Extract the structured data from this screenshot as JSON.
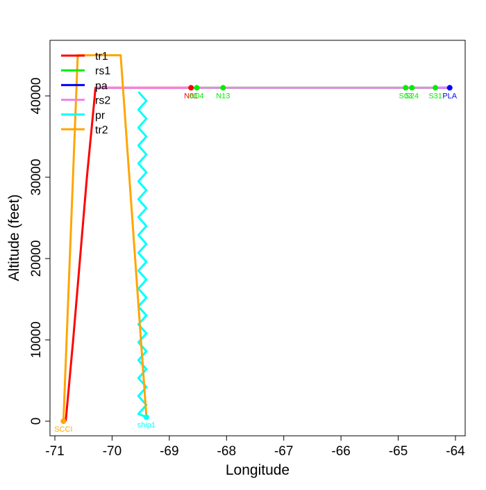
{
  "chart_data": {
    "type": "line",
    "xlabel": "Longitude",
    "ylabel": "Altitude (feet)",
    "xlim": [
      -71.085,
      -63.83
    ],
    "ylim": [
      -1795,
      46838
    ],
    "xticks": [
      -71,
      -70,
      -69,
      -68,
      -67,
      -66,
      -65,
      -64
    ],
    "yticks": [
      0,
      10000,
      20000,
      30000,
      40000
    ],
    "legend": "top-left",
    "series": [
      {
        "name": "tr1",
        "color": "#ff0000",
        "x": [
          -70.81,
          -70.68,
          -70.56,
          -70.44,
          -70.33,
          -70.29,
          -68.62
        ],
        "values": [
          0,
          10000,
          20000,
          30000,
          38000,
          41000,
          41000
        ]
      },
      {
        "name": "rs1",
        "color": "#00ee00",
        "x": [
          -68.56,
          -64.32
        ],
        "values": [
          41000,
          41000
        ]
      },
      {
        "name": "pa",
        "color": "#0000ff",
        "x": [
          -64.32,
          -64.1
        ],
        "values": [
          41000,
          41000
        ]
      },
      {
        "name": "rs2",
        "color": "#ee82ee",
        "x": [
          -70.29,
          -64.1
        ],
        "values": [
          41000,
          41000
        ]
      },
      {
        "name": "pr",
        "color": "#00ffff",
        "x": [
          -69.54,
          -69.4,
          -69.54,
          -69.4,
          -69.54,
          -69.4,
          -69.54,
          -69.4,
          -69.54,
          -69.4,
          -69.54,
          -69.4,
          -69.54,
          -69.4,
          -69.54,
          -69.4,
          -69.54,
          -69.4,
          -69.54,
          -69.4,
          -69.54,
          -69.4,
          -69.54,
          -69.4,
          -69.54,
          -69.4,
          -69.54,
          -69.4,
          -69.54,
          -69.4,
          -69.54,
          -69.4,
          -69.54,
          -69.4,
          -69.54,
          -69.4,
          -69.54,
          -69.4
        ],
        "values": [
          40500,
          39400,
          38300,
          37200,
          36100,
          35000,
          33900,
          32800,
          31700,
          30600,
          29500,
          28400,
          27300,
          26200,
          25100,
          24000,
          22900,
          21800,
          20700,
          19600,
          18500,
          17400,
          16300,
          15200,
          14100,
          13000,
          11900,
          10800,
          9700,
          8600,
          7500,
          6400,
          5300,
          4200,
          3100,
          2000,
          900,
          500
        ]
      },
      {
        "name": "tr2",
        "color": "#ffa500",
        "x": [
          -70.85,
          -70.6,
          -69.85,
          -69.4
        ],
        "values": [
          0,
          45000,
          45000,
          500
        ]
      }
    ],
    "points": [
      {
        "label": "SCCI",
        "color": "#ffa500",
        "x": -70.85,
        "y": 0
      },
      {
        "label": "ship1",
        "color": "#00ffff",
        "x": -69.4,
        "y": 500
      },
      {
        "label": "N01",
        "color": "#ff0000",
        "x": -68.62,
        "y": 41000
      },
      {
        "label": "N04",
        "color": "#00ee00",
        "x": -68.52,
        "y": 41000
      },
      {
        "label": "N13",
        "color": "#00ee00",
        "x": -68.06,
        "y": 41000
      },
      {
        "label": "S03",
        "color": "#00ee00",
        "x": -64.87,
        "y": 41000
      },
      {
        "label": "S24",
        "color": "#00ee00",
        "x": -64.76,
        "y": 41000
      },
      {
        "label": "S31",
        "color": "#00ee00",
        "x": -64.35,
        "y": 41000
      },
      {
        "label": "PLA",
        "color": "#0000ff",
        "x": -64.1,
        "y": 41000
      }
    ]
  }
}
